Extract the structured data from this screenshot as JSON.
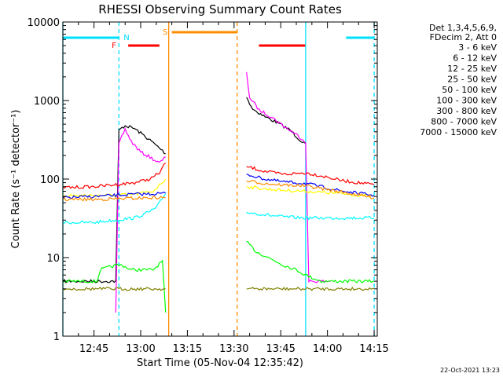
{
  "chart_data": {
    "type": "line",
    "title": "RHESSI Observing Summary Count Rates",
    "xlabel": "Start Time (05-Nov-04 12:35:42)",
    "ylabel": "Count Rate (s⁻¹ detector⁻¹)",
    "yscale": "log",
    "ylim": [
      1,
      10000
    ],
    "xlim": [
      "12:35",
      "14:16"
    ],
    "xticks": [
      "12:45",
      "13:00",
      "13:15",
      "13:30",
      "13:45",
      "14:00",
      "14:15"
    ],
    "yticks": [
      "1",
      "10",
      "100",
      "1000",
      "10000"
    ],
    "legend_header": [
      "Det 1,3,4,5,6,9,",
      "FDecim 2, Att 0"
    ],
    "legend_placement": "right",
    "footer": "22-Oct-2021 13:23",
    "flags": {
      "N": {
        "label": "N",
        "color": "#00e0ff",
        "segments": [
          [
            "12:35",
            "12:53"
          ],
          [
            "14:06",
            "14:15"
          ]
        ]
      },
      "F": {
        "label": "F",
        "color": "#ff0000",
        "segments": [
          [
            "12:56",
            "13:06"
          ],
          [
            "13:38",
            "13:53"
          ]
        ]
      },
      "S": {
        "label": "S",
        "color": "#ff8c00",
        "segments": [
          [
            "13:10",
            "13:31"
          ]
        ]
      }
    },
    "vlines": [
      {
        "time": "12:35",
        "color": "#00e0ff",
        "style": "solid"
      },
      {
        "time": "12:53",
        "color": "#00e0ff",
        "style": "dashed"
      },
      {
        "time": "13:09",
        "color": "#ff8c00",
        "style": "solid"
      },
      {
        "time": "13:31",
        "color": "#ff8c00",
        "style": "dashed"
      },
      {
        "time": "13:53",
        "color": "#00e0ff",
        "style": "solid"
      },
      {
        "time": "14:15",
        "color": "#00e0ff",
        "style": "dashed"
      }
    ],
    "series": [
      {
        "name": "3 - 6 keV",
        "color": "#000000",
        "seg1": [
          [
            "12:35",
            5
          ],
          [
            "12:52",
            5
          ],
          [
            "12:53",
            420
          ],
          [
            "12:55",
            480
          ],
          [
            "12:58",
            440
          ],
          [
            "13:01",
            360
          ],
          [
            "13:04",
            290
          ],
          [
            "13:07",
            230
          ],
          [
            "13:08",
            210
          ]
        ],
        "seg2": [
          [
            "13:34",
            1100
          ],
          [
            "13:36",
            780
          ],
          [
            "13:40",
            620
          ],
          [
            "13:44",
            520
          ],
          [
            "13:48",
            420
          ],
          [
            "13:51",
            320
          ],
          [
            "13:53",
            280
          ]
        ]
      },
      {
        "name": "6 - 12 keV",
        "color": "#ff00ff",
        "seg1": [
          [
            "12:52",
            2
          ],
          [
            "12:53",
            280
          ],
          [
            "12:55",
            430
          ],
          [
            "12:57",
            300
          ],
          [
            "13:00",
            220
          ],
          [
            "13:03",
            190
          ],
          [
            "13:06",
            160
          ],
          [
            "13:08",
            190
          ]
        ],
        "seg2": [
          [
            "13:34",
            2300
          ],
          [
            "13:35",
            1100
          ],
          [
            "13:38",
            760
          ],
          [
            "13:42",
            620
          ],
          [
            "13:46",
            470
          ],
          [
            "13:50",
            370
          ],
          [
            "13:53",
            300
          ],
          [
            "13:54",
            5
          ],
          [
            "14:01",
            5
          ]
        ]
      },
      {
        "name": "12 - 25 keV",
        "color": "#00ff00",
        "seg1": [
          [
            "12:35",
            5
          ],
          [
            "12:46",
            5
          ],
          [
            "12:47",
            7
          ],
          [
            "12:52",
            8
          ],
          [
            "12:54",
            8
          ],
          [
            "12:57",
            7
          ],
          [
            "13:00",
            7
          ],
          [
            "13:04",
            7
          ],
          [
            "13:07",
            9
          ],
          [
            "13:08",
            2
          ]
        ],
        "seg2": [
          [
            "13:34",
            16
          ],
          [
            "13:37",
            12
          ],
          [
            "13:41",
            10
          ],
          [
            "13:46",
            8
          ],
          [
            "13:50",
            7
          ],
          [
            "13:53",
            6
          ],
          [
            "13:58",
            5
          ],
          [
            "14:05",
            5
          ],
          [
            "14:15",
            5
          ]
        ]
      },
      {
        "name": "25 - 50 keV",
        "color": "#00ffff",
        "seg1": [
          [
            "12:35",
            28
          ],
          [
            "12:45",
            28
          ],
          [
            "12:52",
            30
          ],
          [
            "12:58",
            32
          ],
          [
            "13:02",
            37
          ],
          [
            "13:05",
            43
          ],
          [
            "13:08",
            65
          ]
        ],
        "seg2": [
          [
            "13:34",
            38
          ],
          [
            "13:40",
            35
          ],
          [
            "13:46",
            33
          ],
          [
            "13:53",
            32
          ],
          [
            "14:05",
            32
          ],
          [
            "14:15",
            32
          ]
        ]
      },
      {
        "name": "50 - 100 keV",
        "color": "#ffff00",
        "seg1": [
          [
            "12:35",
            62
          ],
          [
            "12:50",
            62
          ],
          [
            "12:58",
            64
          ],
          [
            "13:04",
            70
          ],
          [
            "13:08",
            100
          ]
        ],
        "seg2": [
          [
            "13:34",
            80
          ],
          [
            "13:40",
            75
          ],
          [
            "13:46",
            72
          ],
          [
            "13:53",
            70
          ],
          [
            "14:05",
            65
          ],
          [
            "14:15",
            60
          ]
        ]
      },
      {
        "name": "100 - 300 keV",
        "color": "#ff0000",
        "seg1": [
          [
            "12:35",
            78
          ],
          [
            "12:45",
            80
          ],
          [
            "12:52",
            85
          ],
          [
            "12:58",
            90
          ],
          [
            "13:03",
            100
          ],
          [
            "13:06",
            120
          ],
          [
            "13:08",
            160
          ]
        ],
        "seg2": [
          [
            "13:34",
            145
          ],
          [
            "13:40",
            125
          ],
          [
            "13:46",
            115
          ],
          [
            "13:53",
            120
          ],
          [
            "13:58",
            110
          ],
          [
            "14:05",
            95
          ],
          [
            "14:15",
            85
          ]
        ]
      },
      {
        "name": "300 - 800 keV",
        "color": "#0000ff",
        "seg1": [
          [
            "12:35",
            58
          ],
          [
            "12:45",
            60
          ],
          [
            "12:52",
            62
          ],
          [
            "12:58",
            64
          ],
          [
            "13:04",
            65
          ],
          [
            "13:08",
            66
          ]
        ],
        "seg2": [
          [
            "13:34",
            115
          ],
          [
            "13:40",
            100
          ],
          [
            "13:46",
            92
          ],
          [
            "13:53",
            88
          ],
          [
            "14:05",
            70
          ],
          [
            "14:15",
            62
          ]
        ]
      },
      {
        "name": "800 - 7000 keV",
        "color": "#ff8c00",
        "seg1": [
          [
            "12:35",
            55
          ],
          [
            "12:45",
            55
          ],
          [
            "12:52",
            56
          ],
          [
            "12:58",
            57
          ],
          [
            "13:04",
            58
          ],
          [
            "13:08",
            58
          ]
        ],
        "seg2": [
          [
            "13:34",
            95
          ],
          [
            "13:40",
            88
          ],
          [
            "13:46",
            84
          ],
          [
            "13:53",
            82
          ],
          [
            "14:05",
            68
          ],
          [
            "14:15",
            58
          ]
        ]
      },
      {
        "name": "7000 - 15000 keV",
        "color": "#808000",
        "seg1": [
          [
            "12:35",
            4
          ],
          [
            "12:45",
            4
          ],
          [
            "12:52",
            4
          ],
          [
            "12:58",
            4
          ],
          [
            "13:04",
            4
          ],
          [
            "13:08",
            4
          ]
        ],
        "seg2": [
          [
            "13:34",
            4
          ],
          [
            "13:40",
            4
          ],
          [
            "13:46",
            4
          ],
          [
            "13:53",
            4
          ],
          [
            "14:05",
            4
          ],
          [
            "14:15",
            4
          ]
        ]
      }
    ]
  }
}
